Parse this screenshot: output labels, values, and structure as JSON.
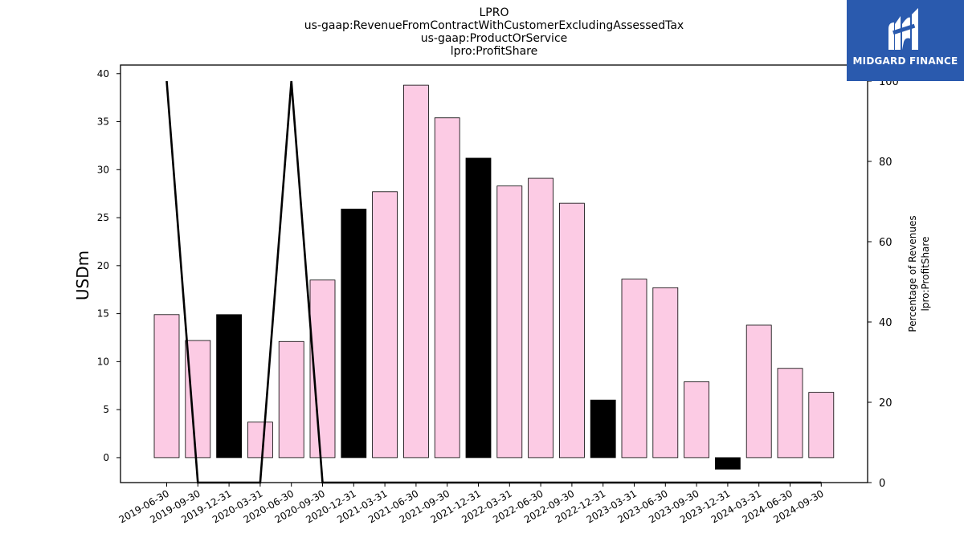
{
  "header": {
    "title_lines": [
      "LPRO",
      "us-gaap:RevenueFromContractWithCustomerExcludingAssessedTax",
      "us-gaap:ProductOrService",
      "lpro:ProfitShare"
    ]
  },
  "logo": {
    "text": "MIDGARD FINANCE",
    "icon": "midgard-logo-icon",
    "background": "#2a5aae"
  },
  "chart_data": {
    "type": "bar",
    "categories": [
      "2019-06-30",
      "2019-09-30",
      "2019-12-31",
      "2020-03-31",
      "2020-06-30",
      "2020-09-30",
      "2020-12-31",
      "2021-03-31",
      "2021-06-30",
      "2021-09-30",
      "2021-12-31",
      "2022-03-31",
      "2022-06-30",
      "2022-09-30",
      "2022-12-31",
      "2023-03-31",
      "2023-06-30",
      "2023-09-30",
      "2023-12-31",
      "2024-03-31",
      "2024-06-30",
      "2024-09-30"
    ],
    "series": [
      {
        "type": "bar",
        "axis": "left",
        "values": [
          14.9,
          12.2,
          14.9,
          3.7,
          12.1,
          18.5,
          25.9,
          27.7,
          38.8,
          35.4,
          31.2,
          28.3,
          29.1,
          26.5,
          6.0,
          18.6,
          17.7,
          7.9,
          -1.2,
          13.8,
          9.3,
          6.8
        ],
        "colors": [
          "#fccbe4",
          "#fccbe4",
          "#000000",
          "#fccbe4",
          "#fccbe4",
          "#fccbe4",
          "#000000",
          "#fccbe4",
          "#fccbe4",
          "#fccbe4",
          "#000000",
          "#fccbe4",
          "#fccbe4",
          "#fccbe4",
          "#000000",
          "#fccbe4",
          "#fccbe4",
          "#fccbe4",
          "#000000",
          "#fccbe4",
          "#fccbe4",
          "#fccbe4"
        ]
      },
      {
        "type": "line",
        "axis": "right",
        "color": "#000000",
        "values": [
          100,
          0,
          0,
          0,
          100,
          0,
          0,
          0,
          0,
          0,
          0,
          0,
          0,
          0,
          0,
          0,
          0,
          0,
          0,
          0,
          0,
          0
        ]
      }
    ],
    "ylabel": "USDm",
    "ylabel_right": [
      "Percentage of Revenues",
      "lpro:ProfitShare"
    ],
    "ylim": [
      -2.6,
      40.9
    ],
    "yticks": [
      0,
      5,
      10,
      15,
      20,
      25,
      30,
      35,
      40
    ],
    "ylim_right": [
      0,
      104
    ],
    "yticks_right": [
      0,
      20,
      40,
      60,
      80,
      100
    ],
    "grid": false
  }
}
